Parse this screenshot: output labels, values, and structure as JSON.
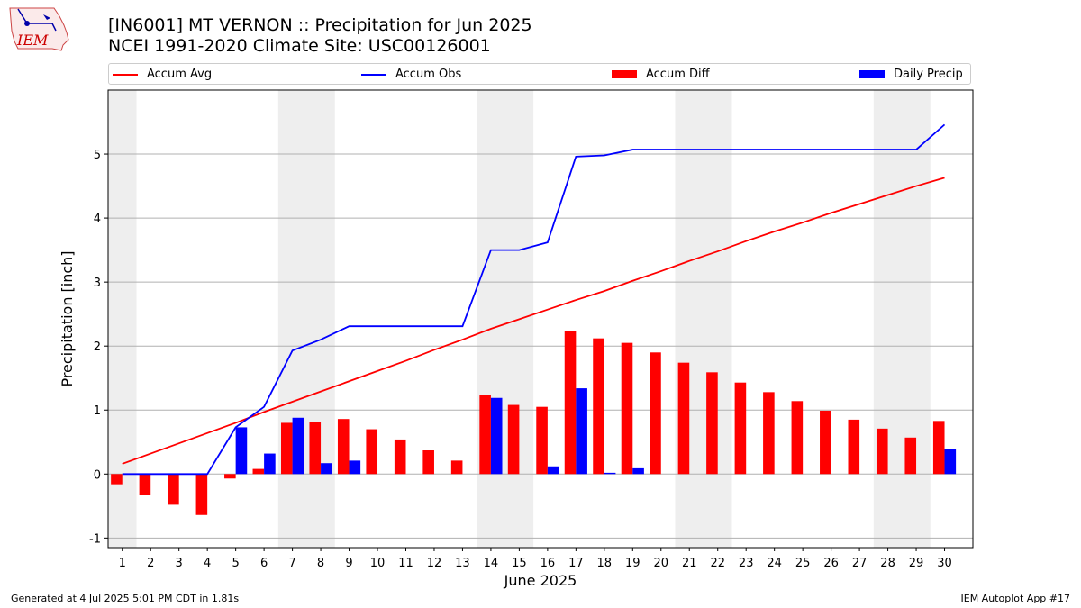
{
  "header": {
    "title_line1": "[IN6001] MT VERNON :: Precipitation for Jun 2025",
    "title_line2": "NCEI 1991-2020 Climate Site: USC00126001",
    "logo_text": "IEM"
  },
  "footer": {
    "generated": "Generated at 4 Jul 2025 5:01 PM CDT in 1.81s",
    "app": "IEM Autoplot App #17"
  },
  "colors": {
    "accum_avg": "#ff0000",
    "accum_obs": "#0000ff",
    "accum_diff": "#ff0000",
    "daily_precip": "#0000ff",
    "weekend_shade": "#eeeeee",
    "grid": "#b0b0b0"
  },
  "chart_data": {
    "type": "bar",
    "xlabel": "June 2025",
    "ylabel": "Precipitation [inch]",
    "ylim": [
      -1.15,
      6.0
    ],
    "yticks": [
      -1,
      0,
      1,
      2,
      3,
      4,
      5
    ],
    "grid": "horizontal",
    "legend_placement": "top",
    "legend": [
      "Accum Avg",
      "Accum Obs",
      "Accum Diff",
      "Daily Precip"
    ],
    "weekend_shaded_days": [
      [
        1,
        1
      ],
      [
        7,
        8
      ],
      [
        14,
        15
      ],
      [
        21,
        22
      ],
      [
        28,
        29
      ]
    ],
    "days": [
      1,
      2,
      3,
      4,
      5,
      6,
      7,
      8,
      9,
      10,
      11,
      12,
      13,
      14,
      15,
      16,
      17,
      18,
      19,
      20,
      21,
      22,
      23,
      24,
      25,
      26,
      27,
      28,
      29,
      30
    ],
    "series": [
      {
        "name": "Accum Avg",
        "kind": "line",
        "values": [
          0.16,
          0.32,
          0.48,
          0.64,
          0.8,
          0.97,
          1.13,
          1.29,
          1.45,
          1.61,
          1.77,
          1.94,
          2.1,
          2.27,
          2.42,
          2.57,
          2.72,
          2.86,
          3.02,
          3.17,
          3.33,
          3.48,
          3.64,
          3.79,
          3.93,
          4.08,
          4.22,
          4.36,
          4.5,
          4.63
        ]
      },
      {
        "name": "Accum Obs",
        "kind": "line",
        "values": [
          0,
          0,
          0,
          0,
          0.73,
          1.05,
          1.93,
          2.1,
          2.31,
          2.31,
          2.31,
          2.31,
          2.31,
          3.5,
          3.5,
          3.62,
          4.96,
          4.98,
          5.07,
          5.07,
          5.07,
          5.07,
          5.07,
          5.07,
          5.07,
          5.07,
          5.07,
          5.07,
          5.07,
          5.46
        ]
      },
      {
        "name": "Accum Diff",
        "kind": "bar",
        "values": [
          -0.16,
          -0.32,
          -0.48,
          -0.64,
          -0.07,
          0.08,
          0.8,
          0.81,
          0.86,
          0.7,
          0.54,
          0.37,
          0.21,
          1.23,
          1.08,
          1.05,
          2.24,
          2.12,
          2.05,
          1.9,
          1.74,
          1.59,
          1.43,
          1.28,
          1.14,
          0.99,
          0.85,
          0.71,
          0.57,
          0.83
        ]
      },
      {
        "name": "Daily Precip",
        "kind": "bar",
        "values": [
          0,
          0,
          0,
          0,
          0.73,
          0.32,
          0.88,
          0.17,
          0.21,
          0,
          0,
          0,
          0,
          1.19,
          0,
          0.12,
          1.34,
          0.02,
          0.09,
          0,
          0,
          0,
          0,
          0,
          0,
          0,
          0,
          0,
          0,
          0.39
        ]
      }
    ]
  }
}
